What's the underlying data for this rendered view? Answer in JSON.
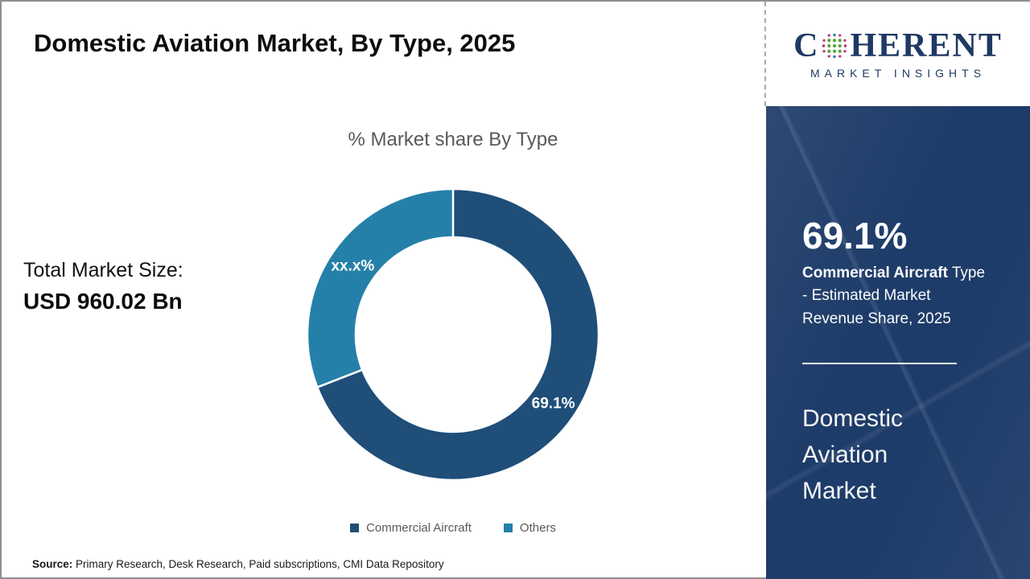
{
  "header": {
    "title": "Domestic Aviation Market, By Type, 2025"
  },
  "logo": {
    "brand_prefix": "C",
    "brand_suffix": "HERENT",
    "brand_subtitle": "MARKET INSIGHTS",
    "brand_color": "#1F3864",
    "globe_icon_colors": {
      "center": "#57A639",
      "edge": "#C0317E",
      "poles": "#2E86AB"
    }
  },
  "left_panel": {
    "total_label": "Total Market Size:",
    "total_value": "USD 960.02 Bn"
  },
  "chart_data": {
    "type": "pie",
    "subtype": "donut",
    "title": "% Market share By Type",
    "categories": [
      "Commercial Aircraft",
      "Others"
    ],
    "values": [
      69.1,
      30.9
    ],
    "slice_labels": [
      "69.1%",
      "xx.x%"
    ],
    "colors": [
      "#1F4E79",
      "#2580A9"
    ],
    "start_angle_deg": 0,
    "direction": "clockwise",
    "inner_radius_ratio": 0.67,
    "legend_position": "bottom",
    "slice_border_color": "#ffffff"
  },
  "sidebar": {
    "highlight_value": "69.1%",
    "highlight_bold": "Commercial Aircraft",
    "highlight_rest": " Type - Estimated Market Revenue Share, 2025",
    "market_name": "Domestic Aviation Market",
    "background_color": "#1E3C69"
  },
  "footer": {
    "source_label": "Source:",
    "source_text": " Primary Research, Desk Research, Paid subscriptions, CMI Data Repository"
  }
}
